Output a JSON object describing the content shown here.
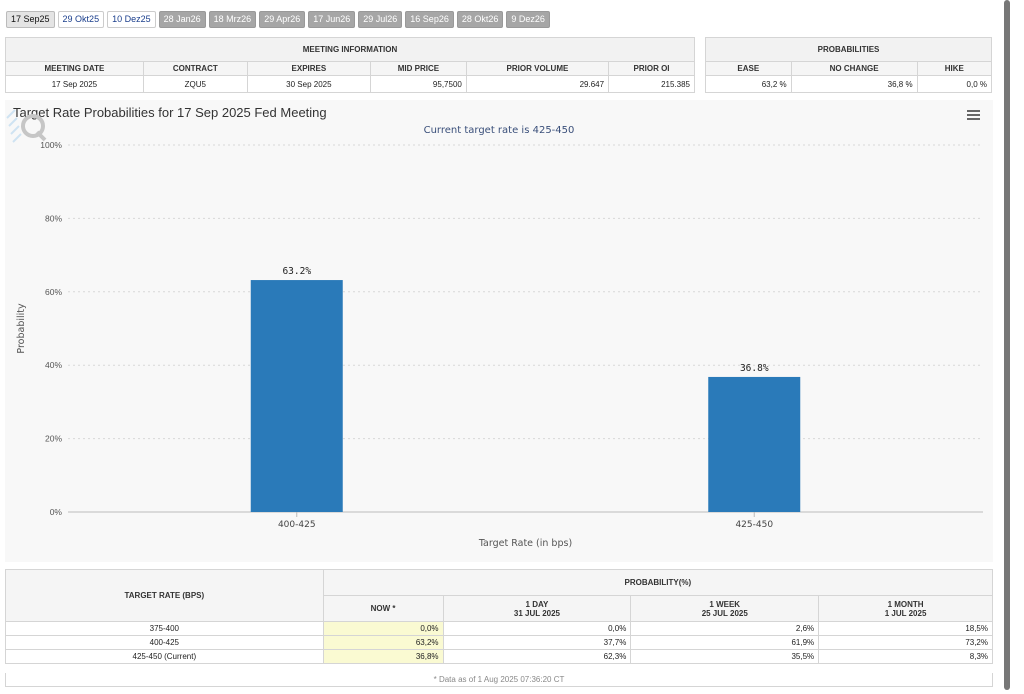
{
  "tabs": [
    {
      "label": "17 Sep25",
      "state": "selected"
    },
    {
      "label": "29 Okt25",
      "state": "normal"
    },
    {
      "label": "10 Dez25",
      "state": "normal"
    },
    {
      "label": "28 Jan26",
      "state": "future"
    },
    {
      "label": "18 Mrz26",
      "state": "future"
    },
    {
      "label": "29 Apr26",
      "state": "future"
    },
    {
      "label": "17 Jun26",
      "state": "future"
    },
    {
      "label": "29 Jul26",
      "state": "future"
    },
    {
      "label": "16 Sep26",
      "state": "future"
    },
    {
      "label": "28 Okt26",
      "state": "future"
    },
    {
      "label": "9 Dez26",
      "state": "future"
    }
  ],
  "meeting_info": {
    "header": "MEETING INFORMATION",
    "columns": [
      "MEETING DATE",
      "CONTRACT",
      "EXPIRES",
      "MID PRICE",
      "PRIOR VOLUME",
      "PRIOR OI"
    ],
    "row": [
      "17 Sep 2025",
      "ZQU5",
      "30 Sep 2025",
      "95,7500",
      "29.647",
      "215.385"
    ]
  },
  "probabilities": {
    "header": "PROBABILITIES",
    "columns": [
      "EASE",
      "NO CHANGE",
      "HIKE"
    ],
    "row": [
      "63,2 %",
      "36,8 %",
      "0,0 %"
    ]
  },
  "chart_data": {
    "type": "bar",
    "title": "Target Rate Probabilities for 17 Sep 2025 Fed Meeting",
    "subtitle": "Current target rate is 425-450",
    "xlabel": "Target Rate (in bps)",
    "ylabel": "Probability",
    "categories": [
      "400-425",
      "425-450"
    ],
    "values": [
      63.2,
      36.8
    ],
    "data_labels": [
      "63.2%",
      "36.8%"
    ],
    "ylim": [
      0,
      100
    ],
    "yticks": [
      "0%",
      "20%",
      "40%",
      "60%",
      "80%",
      "100%"
    ],
    "grid": true,
    "bar_color": "#2a7ab9"
  },
  "target_table": {
    "header_rate": "TARGET RATE (BPS)",
    "header_prob": "PROBABILITY(%)",
    "sub_headers": [
      {
        "l1": "NOW *",
        "l2": ""
      },
      {
        "l1": "1 DAY",
        "l2": "31 JUL 2025"
      },
      {
        "l1": "1 WEEK",
        "l2": "25 JUL 2025"
      },
      {
        "l1": "1 MONTH",
        "l2": "1 JUL 2025"
      }
    ],
    "rows": [
      {
        "rate": "375-400",
        "now": "0,0%",
        "day": "0,0%",
        "week": "2,6%",
        "month": "18,5%"
      },
      {
        "rate": "400-425",
        "now": "63,2%",
        "day": "37,7%",
        "week": "61,9%",
        "month": "73,2%"
      },
      {
        "rate": "425-450 (Current)",
        "now": "36,8%",
        "day": "62,3%",
        "week": "35,5%",
        "month": "8,3%"
      }
    ],
    "footnote": "* Data as of 1 Aug 2025 07:36:20 CT"
  },
  "icons": {
    "menu": "hamburger-menu-icon",
    "logo": "q-logo-icon"
  }
}
